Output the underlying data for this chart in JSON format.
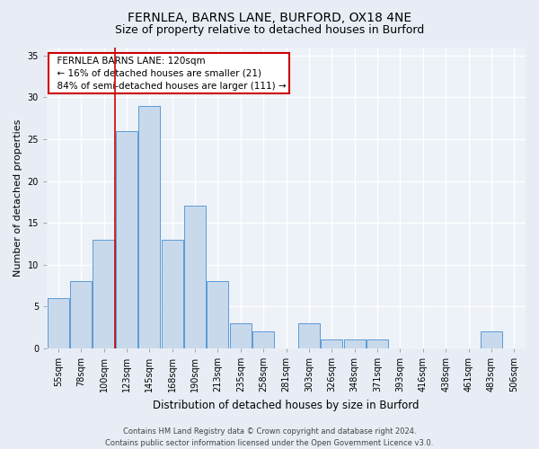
{
  "title1": "FERNLEA, BARNS LANE, BURFORD, OX18 4NE",
  "title2": "Size of property relative to detached houses in Burford",
  "xlabel": "Distribution of detached houses by size in Burford",
  "ylabel": "Number of detached properties",
  "categories": [
    "55sqm",
    "78sqm",
    "100sqm",
    "123sqm",
    "145sqm",
    "168sqm",
    "190sqm",
    "213sqm",
    "235sqm",
    "258sqm",
    "281sqm",
    "303sqm",
    "326sqm",
    "348sqm",
    "371sqm",
    "393sqm",
    "416sqm",
    "438sqm",
    "461sqm",
    "483sqm",
    "506sqm"
  ],
  "values": [
    6,
    8,
    13,
    26,
    29,
    13,
    17,
    8,
    3,
    2,
    0,
    3,
    1,
    1,
    1,
    0,
    0,
    0,
    0,
    2,
    0
  ],
  "bar_color": "#c8d9ec",
  "bar_edge_color": "#5b9bd5",
  "annotation_text": "  FERNLEA BARNS LANE: 120sqm\n  ← 16% of detached houses are smaller (21)\n  84% of semi-detached houses are larger (111) →",
  "annotation_box_color": "white",
  "annotation_box_edge_color": "#cc0000",
  "vline_color": "#cc0000",
  "vline_x_index": 3,
  "ylim": [
    0,
    36
  ],
  "yticks": [
    0,
    5,
    10,
    15,
    20,
    25,
    30,
    35
  ],
  "footer1": "Contains HM Land Registry data © Crown copyright and database right 2024.",
  "footer2": "Contains public sector information licensed under the Open Government Licence v3.0.",
  "bg_color": "#e8edf5",
  "plot_bg_color": "#edf1f8",
  "grid_color": "white",
  "title1_fontsize": 10,
  "title2_fontsize": 9,
  "tick_fontsize": 7,
  "ylabel_fontsize": 8,
  "xlabel_fontsize": 8.5,
  "annot_fontsize": 7.5,
  "footer_fontsize": 6
}
